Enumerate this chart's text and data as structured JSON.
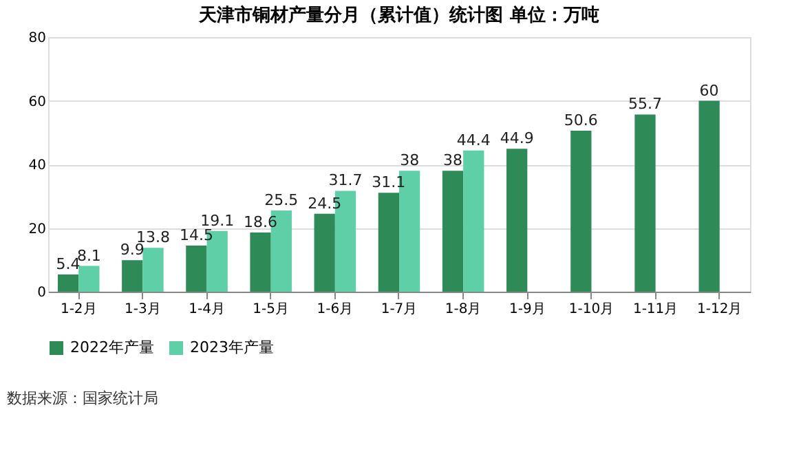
{
  "chart_data": {
    "type": "bar",
    "title": "天津市铜材产量分月（累计值）统计图 单位：万吨",
    "categories": [
      "1-2月",
      "1-3月",
      "1-4月",
      "1-5月",
      "1-6月",
      "1-7月",
      "1-8月",
      "1-9月",
      "1-10月",
      "1-11月",
      "1-12月"
    ],
    "series": [
      {
        "name": "2022年产量",
        "color": "#2e8b57",
        "values": [
          5.4,
          9.9,
          14.5,
          18.6,
          24.5,
          31.1,
          38,
          44.9,
          50.6,
          55.7,
          60
        ]
      },
      {
        "name": "2023年产量",
        "color": "#5fcfa8",
        "values": [
          8.1,
          13.8,
          19.1,
          25.5,
          31.7,
          38,
          44.4,
          null,
          null,
          null,
          null
        ]
      }
    ],
    "ylim": [
      0,
      80
    ],
    "yticks": [
      0,
      20,
      40,
      60,
      80
    ],
    "grid": "y",
    "legend": "bottom",
    "data_labels": true,
    "annotations": [
      "数据来源：国家统计局"
    ]
  }
}
